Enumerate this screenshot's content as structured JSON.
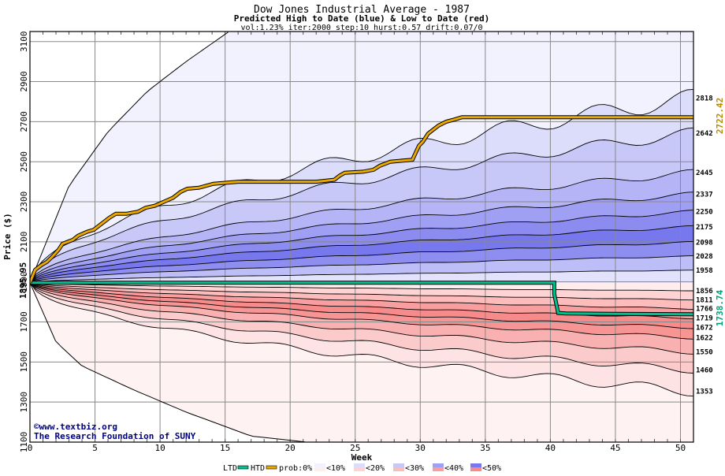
{
  "chart_data": {
    "type": "area",
    "title": "Dow Jones Industrial Average - 1987",
    "subtitle": "Predicted High to Date (blue) &  Low to Date (red)",
    "params": "vol:1.23% iter:2000 step:10 hurst:0.57 drift:0.07/0",
    "xlabel": "Week",
    "ylabel": "Price ($)",
    "xlim": [
      0,
      51
    ],
    "ylim": [
      1100,
      3150
    ],
    "grid": true,
    "x_ticks": [
      "0",
      "5",
      "10",
      "15",
      "20",
      "25",
      "30",
      "35",
      "40",
      "45",
      "50"
    ],
    "y_ticks": [
      "1100",
      "1300",
      "1500",
      "1700",
      "1900",
      "2100",
      "2300",
      "2500",
      "2700",
      "2900",
      "3100"
    ],
    "start_value_label": "1895.95",
    "start_value": 1895.95,
    "htd_final_label": "2722.42",
    "htd_final": 2722.42,
    "ltd_final_label": "1738.74",
    "ltd_final": 1738.74,
    "high_bands": [
      {
        "label": "2818",
        "end": 2818,
        "k": 1.0
      },
      {
        "label": "2642",
        "end": 2642,
        "k": 1.3
      },
      {
        "label": "2445",
        "end": 2445,
        "k": 1.6
      },
      {
        "label": "2337",
        "end": 2337,
        "k": 1.8
      },
      {
        "label": "2250",
        "end": 2250,
        "k": 2.0
      },
      {
        "label": "2175",
        "end": 2175,
        "k": 2.2
      },
      {
        "label": "2098",
        "end": 2098,
        "k": 2.4
      },
      {
        "label": "2028",
        "end": 2028,
        "k": 2.7
      },
      {
        "label": "1958",
        "end": 1958,
        "k": 3.0
      }
    ],
    "low_bands": [
      {
        "label": "1856",
        "end": 1856,
        "k": 3.0
      },
      {
        "label": "1811",
        "end": 1811,
        "k": 2.6
      },
      {
        "label": "1766",
        "end": 1766,
        "k": 2.3
      },
      {
        "label": "1719",
        "end": 1719,
        "k": 2.1
      },
      {
        "label": "1672",
        "end": 1672,
        "k": 1.9
      },
      {
        "label": "1622",
        "end": 1622,
        "k": 1.7
      },
      {
        "label": "1550",
        "end": 1550,
        "k": 1.5
      },
      {
        "label": "1460",
        "end": 1460,
        "k": 1.3
      },
      {
        "label": "1353",
        "end": 1353,
        "k": 1.1
      }
    ],
    "outer_high": {
      "x": [
        0,
        3,
        6,
        9,
        12,
        15.3
      ],
      "y": [
        1895.95,
        2380,
        2650,
        2850,
        3000,
        3150
      ]
    },
    "outer_low": {
      "x": [
        0,
        2,
        4,
        8,
        12,
        17,
        21.3
      ],
      "y": [
        1895.95,
        1600,
        1480,
        1360,
        1250,
        1130,
        1100
      ]
    },
    "high_fill_colors": [
      "#f2f2fe",
      "#dcdcfb",
      "#c8c8f8",
      "#b4b4f6",
      "#9f9ff3",
      "#8b8bf0",
      "#7878ee",
      "#8e8ef0",
      "#bdbdf7",
      "#e2e2fc"
    ],
    "low_fill_colors": [
      "#ffecec",
      "#fdd3d3",
      "#fcbcbc",
      "#f99e9e",
      "#f78a8a",
      "#f79595",
      "#f9b0b0",
      "#fbcbcb",
      "#fde3e3",
      "#fff2f2"
    ],
    "htd": {
      "name": "HTD",
      "color": "#e8a800",
      "x": [
        0,
        0.4,
        0.9,
        1.3,
        1.7,
        2.2,
        2.5,
        2.9,
        3.3,
        3.7,
        4.4,
        4.9,
        5.5,
        6.1,
        6.6,
        7.4,
        8.3,
        8.9,
        9.6,
        10.3,
        11.0,
        11.6,
        12.1,
        13.0,
        14.1,
        16.0,
        19.0,
        22.0,
        23.4,
        23.8,
        24.2,
        25.6,
        26.4,
        26.9,
        27.7,
        29.4,
        29.9,
        30.2,
        30.6,
        31.0,
        31.4,
        32.0,
        32.6,
        33.2,
        35.0,
        40.0,
        45.0,
        51.0
      ],
      "y": [
        1895.95,
        1960,
        1985,
        2000,
        2025,
        2060,
        2090,
        2100,
        2110,
        2130,
        2150,
        2160,
        2190,
        2220,
        2240,
        2240,
        2250,
        2270,
        2280,
        2300,
        2320,
        2350,
        2365,
        2370,
        2390,
        2400,
        2400,
        2400,
        2410,
        2430,
        2445,
        2450,
        2460,
        2480,
        2500,
        2510,
        2580,
        2600,
        2640,
        2660,
        2680,
        2700,
        2710,
        2722,
        2722.42,
        2722.42,
        2722.42,
        2722.42
      ]
    },
    "ltd": {
      "name": "LTD",
      "color": "#00c090",
      "x": [
        0,
        10,
        20,
        30,
        40.3,
        40.3,
        40.6,
        41.2,
        45,
        51
      ],
      "y": [
        1895.95,
        1895.95,
        1895.95,
        1895.95,
        1895.95,
        1840,
        1745,
        1742,
        1740,
        1738.74
      ]
    },
    "legend": {
      "ltd": "LTD",
      "htd": "HTD",
      "prob": "prob:0%",
      "p10": "<10%",
      "p20": "<20%",
      "p30": "<30%",
      "p40": "<40%",
      "p50": "<50%",
      "sw_10_hi": "#f2f2fe",
      "sw_10_lo": "#ffecec",
      "sw_20_hi": "#dcdcfb",
      "sw_20_lo": "#fdd3d3",
      "sw_30_hi": "#c8c8f8",
      "sw_30_lo": "#fcbcbc",
      "sw_40_hi": "#9f9ff3",
      "sw_40_lo": "#f99e9e",
      "sw_50_hi": "#7878ee",
      "sw_50_lo": "#f78a8a"
    },
    "watermark": {
      "line1": "©www.textbiz.org",
      "line2": "The Research Foundation of SUNY"
    }
  }
}
